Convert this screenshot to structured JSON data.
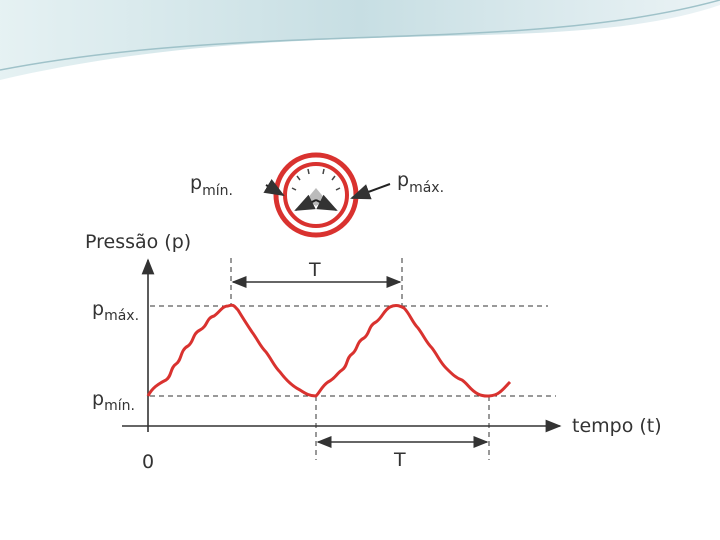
{
  "gauge": {
    "min_label": {
      "base": "p",
      "sub": "mín."
    },
    "max_label": {
      "base": "p",
      "sub": "máx."
    }
  },
  "graph": {
    "y_axis_label": "Pressão (p)",
    "x_axis_label": "tempo (t)",
    "origin_label": "0",
    "max_label": {
      "base": "p",
      "sub": "máx."
    },
    "min_label": {
      "base": "p",
      "sub": "mín."
    },
    "period_labels": [
      "T",
      "T"
    ]
  }
}
